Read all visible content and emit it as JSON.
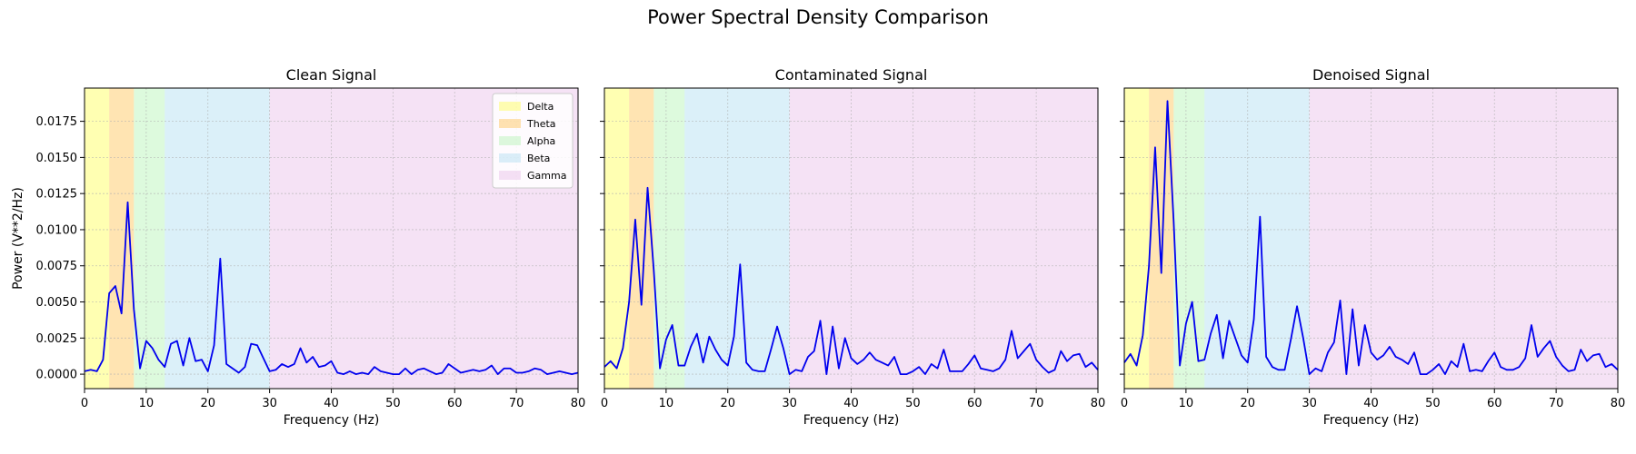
{
  "suptitle": "Power Spectral Density Comparison",
  "chart_data": [
    {
      "type": "line",
      "title": "Clean Signal",
      "xlabel": "Frequency (Hz)",
      "ylabel": "Power (V**2/Hz)",
      "xlim": [
        0,
        80
      ],
      "ylim": [
        -0.001,
        0.0198
      ],
      "grid": true,
      "legend_position": "top-right",
      "show_legend": true,
      "show_yticklabels": true,
      "series": [
        {
          "color": "#0000ee",
          "x": [
            0,
            1,
            2,
            3,
            4,
            5,
            6,
            7,
            8,
            9,
            10,
            11,
            12,
            13,
            14,
            15,
            16,
            17,
            18,
            19,
            20,
            21,
            22,
            23,
            24,
            25,
            26,
            27,
            28,
            29,
            30,
            31,
            32,
            33,
            34,
            35,
            36,
            37,
            38,
            39,
            40,
            41,
            42,
            43,
            44,
            45,
            46,
            47,
            48,
            49,
            50,
            51,
            52,
            53,
            54,
            55,
            56,
            57,
            58,
            59,
            60,
            61,
            62,
            63,
            64,
            65,
            66,
            67,
            68,
            69,
            70,
            71,
            72,
            73,
            74,
            75,
            76,
            77,
            78,
            79,
            80
          ],
          "y": [
            0.0002,
            0.0003,
            0.0002,
            0.001,
            0.0056,
            0.0061,
            0.0042,
            0.0119,
            0.0045,
            0.0004,
            0.0023,
            0.0018,
            0.001,
            0.0005,
            0.0021,
            0.0023,
            0.0006,
            0.0025,
            0.0009,
            0.001,
            0.0002,
            0.002,
            0.008,
            0.0007,
            0.0004,
            0.0001,
            0.0005,
            0.0021,
            0.002,
            0.0011,
            0.0002,
            0.0003,
            0.0007,
            0.0005,
            0.0007,
            0.0018,
            0.0008,
            0.0012,
            0.0005,
            0.0006,
            0.0009,
            0.0001,
            0.0,
            0.0002,
            0.0,
            0.0001,
            0.0,
            0.0005,
            0.0002,
            0.0001,
            0.0,
            0.0,
            0.0004,
            0.0,
            0.0003,
            0.0004,
            0.0002,
            0.0,
            0.0001,
            0.0007,
            0.0004,
            0.0001,
            0.0002,
            0.0003,
            0.0002,
            0.0003,
            0.0006,
            0.0,
            0.0004,
            0.0004,
            0.0001,
            0.0001,
            0.0002,
            0.0004,
            0.0003,
            0.0,
            0.0001,
            0.0002,
            0.0001,
            0.0,
            0.0001
          ]
        }
      ]
    },
    {
      "type": "line",
      "title": "Contaminated Signal",
      "xlabel": "Frequency (Hz)",
      "ylabel": "",
      "xlim": [
        0,
        80
      ],
      "ylim": [
        -0.001,
        0.0198
      ],
      "grid": true,
      "show_legend": false,
      "show_yticklabels": false,
      "series": [
        {
          "color": "#0000ee",
          "x": [
            0,
            1,
            2,
            3,
            4,
            5,
            6,
            7,
            8,
            9,
            10,
            11,
            12,
            13,
            14,
            15,
            16,
            17,
            18,
            19,
            20,
            21,
            22,
            23,
            24,
            25,
            26,
            27,
            28,
            29,
            30,
            31,
            32,
            33,
            34,
            35,
            36,
            37,
            38,
            39,
            40,
            41,
            42,
            43,
            44,
            45,
            46,
            47,
            48,
            49,
            50,
            51,
            52,
            53,
            54,
            55,
            56,
            57,
            58,
            59,
            60,
            61,
            62,
            63,
            64,
            65,
            66,
            67,
            68,
            69,
            70,
            71,
            72,
            73,
            74,
            75,
            76,
            77,
            78,
            79,
            80
          ],
          "y": [
            0.0005,
            0.0009,
            0.0004,
            0.0018,
            0.005,
            0.0107,
            0.0048,
            0.0129,
            0.0072,
            0.0004,
            0.0024,
            0.0034,
            0.0006,
            0.0006,
            0.0019,
            0.0028,
            0.0008,
            0.0026,
            0.0017,
            0.001,
            0.0006,
            0.0026,
            0.0076,
            0.0008,
            0.0003,
            0.0002,
            0.0002,
            0.0017,
            0.0033,
            0.0018,
            0.0,
            0.0003,
            0.0002,
            0.0012,
            0.0016,
            0.0037,
            0.0,
            0.0033,
            0.0004,
            0.0025,
            0.0011,
            0.0007,
            0.001,
            0.0015,
            0.001,
            0.0008,
            0.0006,
            0.0012,
            0.0,
            0.0,
            0.0002,
            0.0005,
            0.0,
            0.0007,
            0.0004,
            0.0017,
            0.0002,
            0.0002,
            0.0002,
            0.0007,
            0.0013,
            0.0004,
            0.0003,
            0.0002,
            0.0004,
            0.001,
            0.003,
            0.0011,
            0.0016,
            0.0021,
            0.001,
            0.0005,
            0.0001,
            0.0003,
            0.0016,
            0.0009,
            0.0013,
            0.0014,
            0.0005,
            0.0008,
            0.0003
          ]
        }
      ]
    },
    {
      "type": "line",
      "title": "Denoised Signal",
      "xlabel": "Frequency (Hz)",
      "ylabel": "",
      "xlim": [
        0,
        80
      ],
      "ylim": [
        -0.001,
        0.0198
      ],
      "grid": true,
      "show_legend": false,
      "show_yticklabels": false,
      "series": [
        {
          "color": "#0000ee",
          "x": [
            0,
            1,
            2,
            3,
            4,
            5,
            6,
            7,
            8,
            9,
            10,
            11,
            12,
            13,
            14,
            15,
            16,
            17,
            18,
            19,
            20,
            21,
            22,
            23,
            24,
            25,
            26,
            27,
            28,
            29,
            30,
            31,
            32,
            33,
            34,
            35,
            36,
            37,
            38,
            39,
            40,
            41,
            42,
            43,
            44,
            45,
            46,
            47,
            48,
            49,
            50,
            51,
            52,
            53,
            54,
            55,
            56,
            57,
            58,
            59,
            60,
            61,
            62,
            63,
            64,
            65,
            66,
            67,
            68,
            69,
            70,
            71,
            72,
            73,
            74,
            75,
            76,
            77,
            78,
            79,
            80
          ],
          "y": [
            0.0008,
            0.0014,
            0.0006,
            0.0027,
            0.0075,
            0.0157,
            0.007,
            0.0189,
            0.0106,
            0.0006,
            0.0035,
            0.005,
            0.0009,
            0.001,
            0.0028,
            0.0041,
            0.0011,
            0.0037,
            0.0025,
            0.0013,
            0.0008,
            0.0038,
            0.0109,
            0.0012,
            0.0005,
            0.0003,
            0.0003,
            0.0024,
            0.0047,
            0.0025,
            0.0,
            0.0004,
            0.0002,
            0.0015,
            0.0022,
            0.0051,
            0.0,
            0.0045,
            0.0006,
            0.0034,
            0.0015,
            0.001,
            0.0013,
            0.0019,
            0.0012,
            0.001,
            0.0007,
            0.0015,
            0.0,
            0.0,
            0.0003,
            0.0007,
            0.0,
            0.0009,
            0.0005,
            0.0021,
            0.0002,
            0.0003,
            0.0002,
            0.0009,
            0.0015,
            0.0005,
            0.0003,
            0.0003,
            0.0005,
            0.0011,
            0.0034,
            0.0012,
            0.0018,
            0.0023,
            0.0012,
            0.0006,
            0.0002,
            0.0003,
            0.0017,
            0.0009,
            0.0013,
            0.0014,
            0.0005,
            0.0007,
            0.0003
          ]
        }
      ]
    }
  ],
  "bands": [
    {
      "name": "Delta",
      "range": [
        0,
        4
      ],
      "color": "#ffff00",
      "opacity": 0.3
    },
    {
      "name": "Theta",
      "range": [
        4,
        8
      ],
      "color": "#ffa500",
      "opacity": 0.3
    },
    {
      "name": "Alpha",
      "range": [
        8,
        13
      ],
      "color": "#90ee90",
      "opacity": 0.3
    },
    {
      "name": "Beta",
      "range": [
        13,
        30
      ],
      "color": "#87ceeb",
      "opacity": 0.3
    },
    {
      "name": "Gamma",
      "range": [
        30,
        80
      ],
      "color": "#dda0dd",
      "opacity": 0.3
    }
  ],
  "xticks": [
    0,
    10,
    20,
    30,
    40,
    50,
    60,
    70,
    80
  ],
  "yticks": [
    0.0,
    0.0025,
    0.005,
    0.0075,
    0.01,
    0.0125,
    0.015,
    0.0175
  ],
  "ytick_labels": [
    "0.0000",
    "0.0025",
    "0.0050",
    "0.0075",
    "0.0100",
    "0.0125",
    "0.0150",
    "0.0175"
  ]
}
